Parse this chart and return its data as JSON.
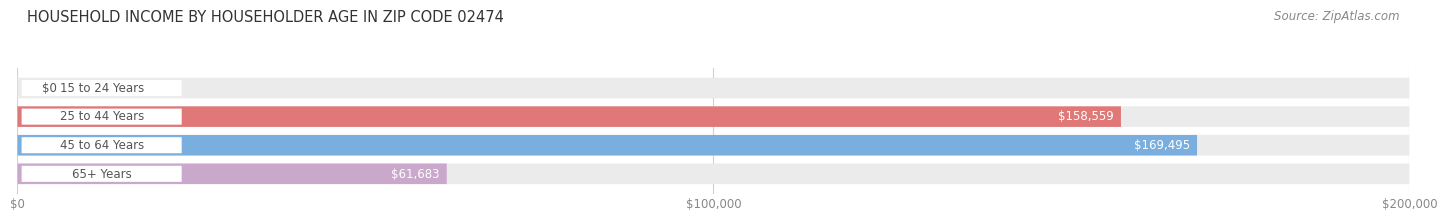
{
  "title": "HOUSEHOLD INCOME BY HOUSEHOLDER AGE IN ZIP CODE 02474",
  "source": "Source: ZipAtlas.com",
  "categories": [
    "15 to 24 Years",
    "25 to 44 Years",
    "45 to 64 Years",
    "65+ Years"
  ],
  "values": [
    0,
    158559,
    169495,
    61683
  ],
  "bar_colors": [
    "#f0c899",
    "#e07878",
    "#7aaede",
    "#c9a8cc"
  ],
  "bar_bg_color": "#ebebeb",
  "value_labels": [
    "$0",
    "$158,559",
    "$169,495",
    "$61,683"
  ],
  "xlim": [
    0,
    200000
  ],
  "xticks": [
    0,
    100000,
    200000
  ],
  "xtick_labels": [
    "$0",
    "$100,000",
    "$200,000"
  ],
  "fig_bg_color": "#ffffff",
  "bar_height": 0.72,
  "title_fontsize": 10.5,
  "source_fontsize": 8.5,
  "label_fontsize": 8.5,
  "value_fontsize": 8.5,
  "grid_color": "#d0d0d0",
  "label_bg_color": "#ffffff",
  "label_text_color": "#555555",
  "value_text_color_inside": "#ffffff",
  "value_text_color_outside": "#555555",
  "xtick_color": "#888888"
}
